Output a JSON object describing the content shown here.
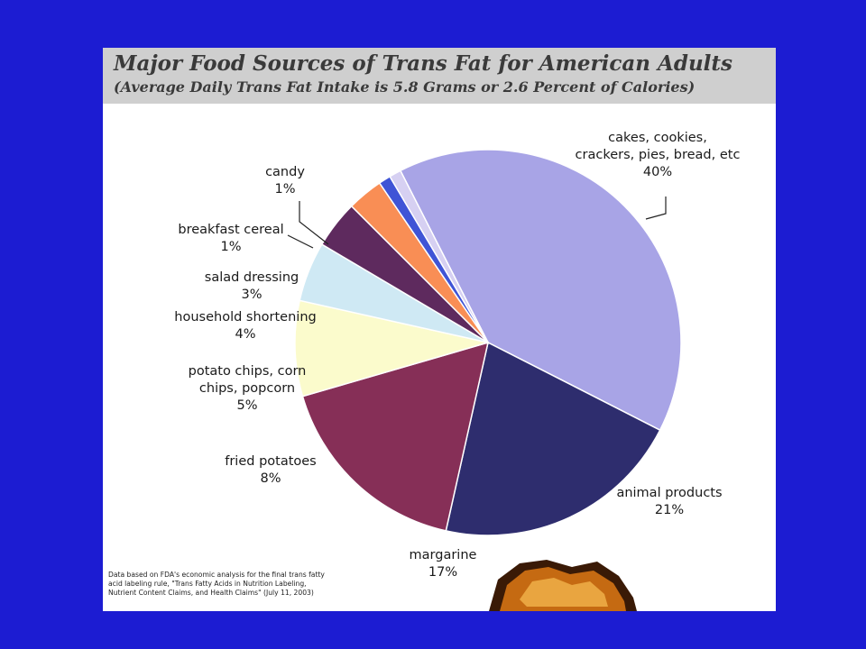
{
  "chart_data": {
    "type": "pie",
    "title": "Major Food Sources of Trans Fat for American Adults",
    "subtitle": "(Average Daily Trans Fat Intake is 5.8 Grams or 2.6 Percent of Calories)",
    "slices": [
      {
        "label_lines": [
          "cakes, cookies,",
          "crackers, pies, bread, etc",
          "40%"
        ],
        "value": 40,
        "color": "#a8a4e6"
      },
      {
        "label_lines": [
          "animal products",
          "21%"
        ],
        "value": 21,
        "color": "#2e2d6e"
      },
      {
        "label_lines": [
          "margarine",
          "17%"
        ],
        "value": 17,
        "color": "#862f57"
      },
      {
        "label_lines": [
          "fried potatoes",
          "8%"
        ],
        "value": 8,
        "color": "#fbfbcc"
      },
      {
        "label_lines": [
          "potato chips, corn",
          "chips, popcorn",
          "5%"
        ],
        "value": 5,
        "color": "#cfe9f4"
      },
      {
        "label_lines": [
          "household shortening",
          "4%"
        ],
        "value": 4,
        "color": "#5e2a5e"
      },
      {
        "label_lines": [
          "salad dressing",
          "3%"
        ],
        "value": 3,
        "color": "#f98e55"
      },
      {
        "label_lines": [
          "breakfast cereal",
          "1%"
        ],
        "value": 1,
        "color": "#3f54d6"
      },
      {
        "label_lines": [
          "candy",
          "1%"
        ],
        "value": 1,
        "color": "#d6d0f2"
      }
    ]
  },
  "source_note": [
    "Data based on FDA's economic analysis for the final trans fatty",
    "acid labeling rule, \"Trans Fatty Acids in Nutrition Labeling,",
    "Nutrient Content Claims, and Health Claims\" (July 11, 2003)"
  ]
}
